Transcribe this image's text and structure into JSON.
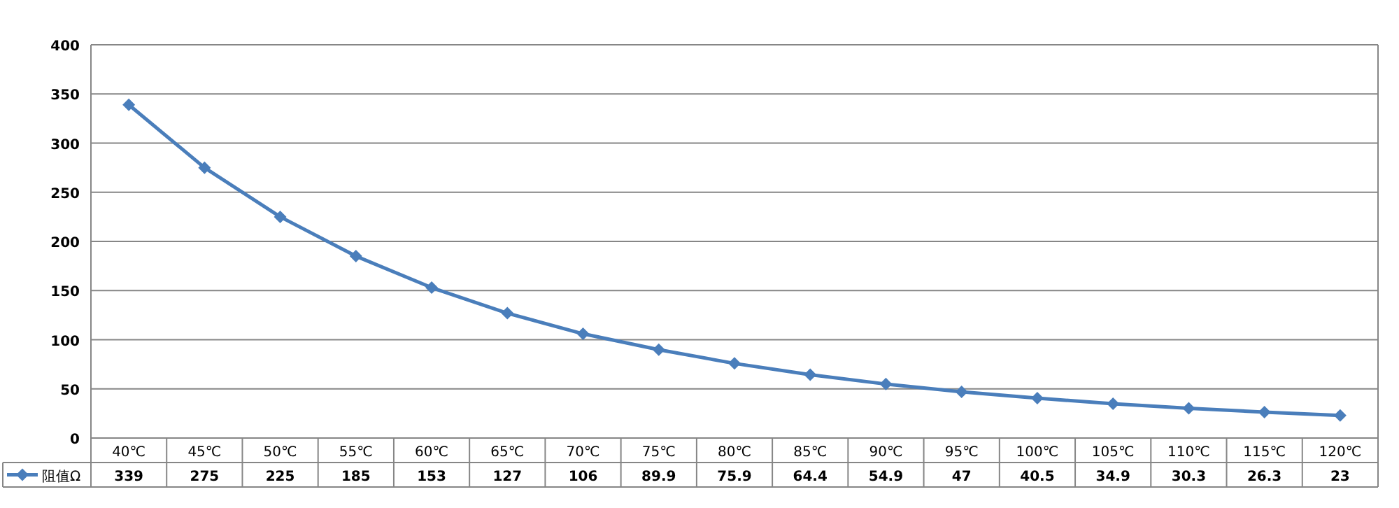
{
  "chart_data": {
    "type": "line",
    "categories": [
      "40℃",
      "45℃",
      "50℃",
      "55℃",
      "60℃",
      "65℃",
      "70℃",
      "75℃",
      "80℃",
      "85℃",
      "90℃",
      "95℃",
      "100℃",
      "105℃",
      "110℃",
      "115℃",
      "120℃"
    ],
    "series": [
      {
        "name": "阻值Ω",
        "color": "#4a7ebb",
        "values": [
          339,
          275,
          225,
          185,
          153,
          127,
          106,
          89.9,
          75.9,
          64.4,
          54.9,
          47,
          40.5,
          34.9,
          30.3,
          26.3,
          23
        ]
      }
    ],
    "ylim": [
      0,
      400
    ],
    "yticks": [
      0,
      50,
      100,
      150,
      200,
      250,
      300,
      350,
      400
    ],
    "grid": "y",
    "legend": "bottom",
    "marker": "diamond",
    "line_style": "solid",
    "data_labels": true
  }
}
